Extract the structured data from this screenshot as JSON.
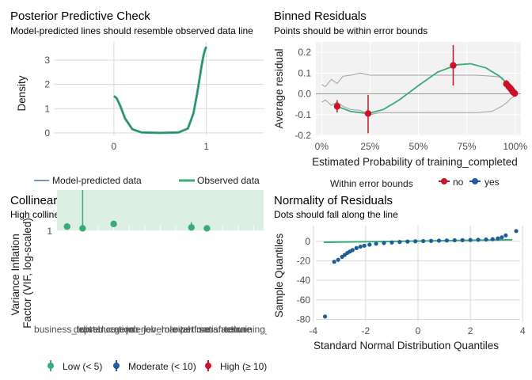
{
  "chart_data": [
    {
      "type": "line",
      "title": "Posterior Predictive Check",
      "subtitle": "Model-predicted lines should resemble observed data line",
      "xlabel": "training_completed",
      "ylabel": "Density",
      "xlim": [
        -0.65,
        1.62
      ],
      "ylim": [
        -0.1,
        3.75
      ],
      "x_ticks": [
        {
          "value": 0,
          "label": "0"
        },
        {
          "value": 1,
          "label": "1"
        }
      ],
      "y_ticks": [
        {
          "value": 0,
          "label": "0"
        },
        {
          "value": 1,
          "label": "1"
        },
        {
          "value": 2,
          "label": "2"
        },
        {
          "value": 3,
          "label": "3"
        }
      ],
      "grid": true,
      "legend_position": "bottom",
      "series": [
        {
          "name": "Model-predicted data",
          "color": "#1f5c99",
          "x": [
            0,
            0.03,
            0.07,
            0.12,
            0.2,
            0.3,
            0.5,
            0.7,
            0.8,
            0.86,
            0.9,
            0.93,
            0.95,
            0.97,
            0.985,
            1
          ],
          "y": [
            1.52,
            1.43,
            1.1,
            0.6,
            0.15,
            0.02,
            0.0,
            0.02,
            0.18,
            0.8,
            1.6,
            2.3,
            2.8,
            3.2,
            3.42,
            3.55
          ]
        },
        {
          "name": "Observed data",
          "color": "#3aaa78",
          "x": [
            0,
            0.03,
            0.07,
            0.12,
            0.2,
            0.3,
            0.5,
            0.7,
            0.8,
            0.86,
            0.9,
            0.93,
            0.95,
            0.97,
            0.985,
            1
          ],
          "y": [
            1.52,
            1.43,
            1.1,
            0.6,
            0.15,
            0.02,
            0.0,
            0.02,
            0.18,
            0.8,
            1.6,
            2.3,
            2.8,
            3.2,
            3.42,
            3.55
          ]
        }
      ]
    },
    {
      "type": "scatter",
      "title": "Binned Residuals",
      "subtitle": "Points should be within error bounds",
      "xlabel": "Estimated Probability of training_completed",
      "ylabel": "Average residual",
      "xlim": [
        -0.03,
        1.03
      ],
      "ylim": [
        -0.2,
        0.25
      ],
      "x_ticks": [
        {
          "value": 0,
          "label": "0%"
        },
        {
          "value": 0.25,
          "label": "25%"
        },
        {
          "value": 0.5,
          "label": "50%"
        },
        {
          "value": 0.75,
          "label": "75%"
        },
        {
          "value": 1,
          "label": "100%"
        }
      ],
      "y_ticks": [
        {
          "value": -0.2,
          "label": "-0.2"
        },
        {
          "value": -0.1,
          "label": "-0.1"
        },
        {
          "value": 0,
          "label": "0.0"
        },
        {
          "value": 0.1,
          "label": "0.1"
        },
        {
          "value": 0.2,
          "label": "0.2"
        }
      ],
      "grid": true,
      "legend_title": "Within error bounds",
      "legend_position": "bottom",
      "legend": [
        {
          "name": "no",
          "color": "#cc1128"
        },
        {
          "name": "yes",
          "color": "#1f5c99"
        }
      ],
      "points": [
        {
          "x": 0.08,
          "y": -0.06,
          "lo": -0.09,
          "hi": -0.03,
          "group": "no"
        },
        {
          "x": 0.24,
          "y": -0.095,
          "lo": -0.19,
          "hi": -0.005,
          "group": "no"
        },
        {
          "x": 0.68,
          "y": 0.137,
          "lo": 0.04,
          "hi": 0.235,
          "group": "no"
        },
        {
          "x": 0.955,
          "y": 0.048,
          "lo": 0.03,
          "hi": 0.066,
          "group": "no"
        },
        {
          "x": 0.967,
          "y": 0.035,
          "lo": 0.02,
          "hi": 0.05,
          "group": "no"
        },
        {
          "x": 0.977,
          "y": 0.025,
          "lo": 0.012,
          "hi": 0.038,
          "group": "no"
        },
        {
          "x": 0.985,
          "y": 0.015,
          "lo": 0.005,
          "hi": 0.025,
          "group": "no"
        },
        {
          "x": 0.992,
          "y": 0.007,
          "lo": 0.0,
          "hi": 0.014,
          "group": "no"
        },
        {
          "x": 0.998,
          "y": 0.002,
          "lo": -0.004,
          "hi": 0.008,
          "group": "no"
        }
      ],
      "fit_line": {
        "color": "#3aaa78",
        "x": [
          0.08,
          0.15,
          0.24,
          0.32,
          0.4,
          0.5,
          0.6,
          0.7,
          0.77,
          0.85,
          0.92,
          0.97,
          1.0
        ],
        "y": [
          -0.06,
          -0.085,
          -0.095,
          -0.075,
          -0.03,
          0.04,
          0.105,
          0.14,
          0.145,
          0.125,
          0.085,
          0.04,
          0.0
        ]
      },
      "error_bounds": {
        "color": "#a0a0a0",
        "x": [
          0.0,
          0.02,
          0.05,
          0.08,
          0.11,
          0.15,
          0.2,
          0.25,
          0.3,
          0.4,
          0.5,
          0.6,
          0.7,
          0.8,
          0.88,
          0.93,
          0.96,
          0.98,
          1.0
        ],
        "upper": [
          0.045,
          0.035,
          0.07,
          0.05,
          0.085,
          0.09,
          0.1,
          0.09,
          0.09,
          0.09,
          0.09,
          0.09,
          0.09,
          0.09,
          0.085,
          0.08,
          0.05,
          0.03,
          0.01
        ],
        "lower": [
          -0.04,
          -0.03,
          -0.055,
          -0.04,
          -0.06,
          -0.075,
          -0.08,
          -0.1,
          -0.09,
          -0.09,
          -0.09,
          -0.09,
          -0.09,
          -0.09,
          -0.085,
          -0.06,
          -0.04,
          -0.02,
          -0.01
        ]
      }
    },
    {
      "type": "scatter",
      "title": "Collinearity",
      "subtitle": "High collinearity (VIF) may inflate parameter uncertainty",
      "xlabel": "",
      "ylabel": "Variance Inflation\nFactor (VIF, log-scaled)",
      "y_scale": "log",
      "ylim": [
        1,
        11.5
      ],
      "y_ticks": [
        {
          "value": 1,
          "label": "1"
        },
        {
          "value": 2,
          "label": "2"
        },
        {
          "value": 3,
          "label": "3"
        },
        {
          "value": 5,
          "label": "5"
        },
        {
          "value": 10,
          "label": "10"
        }
      ],
      "x_labels": [
        "business_travel",
        "dept",
        "distance",
        "education",
        "gender",
        "job_level",
        "job_role",
        "marital",
        "overtime",
        "performance",
        "satisfaction",
        "tenure",
        "training_t"
      ],
      "grid": true,
      "zones": [
        {
          "name": "Low (< 5)",
          "from": 1,
          "to": 5,
          "color": "#dcefe3"
        },
        {
          "name": "Moderate (< 10)",
          "from": 5,
          "to": 10,
          "color": "#dbe2ef"
        },
        {
          "name": "High (≥ 10)",
          "from": 10,
          "to": 11.5,
          "color": "#f6d9dd"
        }
      ],
      "legend_position": "bottom",
      "legend": [
        {
          "name": "Low (< 5)",
          "color": "#3aaa78"
        },
        {
          "name": "Moderate (< 10)",
          "color": "#1f5c99"
        },
        {
          "name": "High (≥ 10)",
          "color": "#cc1128"
        }
      ],
      "points": [
        {
          "x": 1,
          "y": 1.05,
          "hi": 1.05,
          "group": "Low (< 5)"
        },
        {
          "x": 2,
          "y": 1.03,
          "hi": 1.65,
          "group": "Low (< 5)"
        },
        {
          "x": 3,
          "y": 5.2,
          "hi": 5.2,
          "group": "Moderate (< 10)"
        },
        {
          "x": 4,
          "y": 1.08,
          "hi": 1.08,
          "group": "Low (< 5)"
        },
        {
          "x": 5,
          "y": 3.05,
          "hi": 3.05,
          "group": "Low (< 5)"
        },
        {
          "x": 6,
          "y": 1.6,
          "hi": 1.6,
          "group": "Low (< 5)"
        },
        {
          "x": 7,
          "y": 2.15,
          "hi": 2.15,
          "group": "Low (< 5)"
        },
        {
          "x": 8,
          "y": 7.3,
          "hi": 7.3,
          "group": "Moderate (< 10)"
        },
        {
          "x": 9,
          "y": 1.04,
          "hi": 1.1,
          "group": "Low (< 5)"
        },
        {
          "x": 10,
          "y": 1.03,
          "hi": 1.03,
          "group": "Low (< 5)"
        },
        {
          "x": 11,
          "y": 6.3,
          "hi": 6.3,
          "group": "Moderate (< 10)"
        },
        {
          "x": 12,
          "y": 3.05,
          "hi": 3.05,
          "group": "Low (< 5)"
        },
        {
          "x": 13,
          "y": 1.6,
          "hi": 1.6,
          "group": "Low (< 5)"
        }
      ]
    },
    {
      "type": "scatter",
      "title": "Normality of Residuals",
      "subtitle": "Dots should fall along the line",
      "xlabel": "Standard Normal Distribution Quantiles",
      "ylabel": "Sample Quantiles",
      "xlim": [
        -3.9,
        3.9
      ],
      "ylim": [
        -82,
        16
      ],
      "x_ticks": [
        {
          "value": -4,
          "label": "-4"
        },
        {
          "value": -2,
          "label": "-2"
        },
        {
          "value": 0,
          "label": "0"
        },
        {
          "value": 2,
          "label": "2"
        },
        {
          "value": 4,
          "label": "4"
        }
      ],
      "y_ticks": [
        {
          "value": -80,
          "label": "-80"
        },
        {
          "value": -60,
          "label": "-60"
        },
        {
          "value": -40,
          "label": "-40"
        },
        {
          "value": -20,
          "label": "-20"
        },
        {
          "value": 0,
          "label": "0"
        }
      ],
      "grid": true,
      "reference_line": {
        "color": "#3aaa78",
        "x": [
          -3.6,
          3.6
        ],
        "y": [
          -1.0,
          1.5
        ]
      },
      "points_color": "#1f5c99",
      "points": [
        {
          "x": -3.55,
          "y": -77
        },
        {
          "x": -3.2,
          "y": -21
        },
        {
          "x": -3.05,
          "y": -19
        },
        {
          "x": -2.9,
          "y": -16
        },
        {
          "x": -2.8,
          "y": -14
        },
        {
          "x": -2.7,
          "y": -12
        },
        {
          "x": -2.6,
          "y": -10.5
        },
        {
          "x": -2.5,
          "y": -9
        },
        {
          "x": -2.35,
          "y": -7
        },
        {
          "x": -2.2,
          "y": -5.5
        },
        {
          "x": -2.05,
          "y": -4.5
        },
        {
          "x": -1.85,
          "y": -3.5
        },
        {
          "x": -1.6,
          "y": -2.5
        },
        {
          "x": -1.3,
          "y": -1.8
        },
        {
          "x": -1.0,
          "y": -1.2
        },
        {
          "x": -0.7,
          "y": -0.7
        },
        {
          "x": -0.4,
          "y": -0.3
        },
        {
          "x": -0.1,
          "y": 0.0
        },
        {
          "x": 0.2,
          "y": 0.2
        },
        {
          "x": 0.5,
          "y": 0.4
        },
        {
          "x": 0.8,
          "y": 0.6
        },
        {
          "x": 1.1,
          "y": 0.8
        },
        {
          "x": 1.4,
          "y": 1.0
        },
        {
          "x": 1.7,
          "y": 1.1
        },
        {
          "x": 2.0,
          "y": 1.3
        },
        {
          "x": 2.3,
          "y": 1.5
        },
        {
          "x": 2.6,
          "y": 1.8
        },
        {
          "x": 2.85,
          "y": 2.2
        },
        {
          "x": 3.05,
          "y": 2.9
        },
        {
          "x": 3.2,
          "y": 4.0
        },
        {
          "x": 3.35,
          "y": 6.0
        },
        {
          "x": 3.75,
          "y": 10.5
        }
      ]
    }
  ]
}
